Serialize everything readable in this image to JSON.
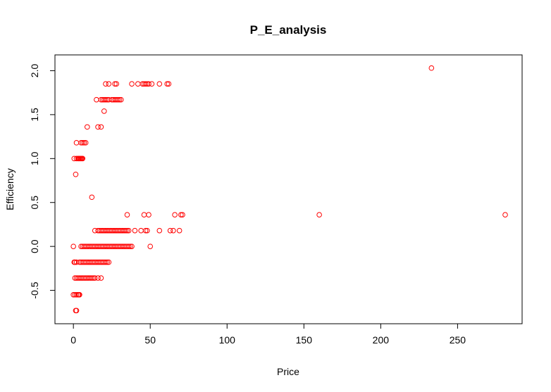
{
  "chart_data": {
    "type": "scatter",
    "title": "P_E_analysis",
    "xlabel": "Price",
    "ylabel": "Efficiency",
    "xlim": [
      -12,
      292
    ],
    "ylim": [
      -0.88,
      2.18
    ],
    "xticks": [
      0,
      50,
      100,
      150,
      200,
      250
    ],
    "yticks": [
      -0.5,
      0.0,
      0.5,
      1.0,
      1.5,
      2.0
    ],
    "xtick_labels": [
      "0",
      "50",
      "100",
      "150",
      "200",
      "250"
    ],
    "ytick_labels": [
      "-0.5",
      "0.0",
      "0.5",
      "1.0",
      "1.5",
      "2.0"
    ],
    "grid": false,
    "point_color": "#ff0000",
    "marker": "open-circle",
    "series": [
      {
        "points": [
          [
            21,
            1.85
          ],
          [
            23,
            1.85
          ],
          [
            27,
            1.85
          ],
          [
            28,
            1.85
          ],
          [
            38,
            1.85
          ],
          [
            42,
            1.85
          ],
          [
            45,
            1.85
          ],
          [
            46,
            1.85
          ],
          [
            47,
            1.85
          ],
          [
            48,
            1.85
          ],
          [
            49,
            1.85
          ],
          [
            51,
            1.85
          ],
          [
            56,
            1.85
          ],
          [
            61,
            1.85
          ],
          [
            62,
            1.85
          ],
          [
            233,
            2.03
          ],
          [
            15,
            1.67
          ],
          [
            18,
            1.67
          ],
          [
            19,
            1.67
          ],
          [
            20,
            1.67
          ],
          [
            21,
            1.67
          ],
          [
            22,
            1.67
          ],
          [
            23,
            1.67
          ],
          [
            25,
            1.67
          ],
          [
            26,
            1.67
          ],
          [
            27,
            1.67
          ],
          [
            28,
            1.67
          ],
          [
            29,
            1.67
          ],
          [
            30,
            1.67
          ],
          [
            31,
            1.67
          ],
          [
            20,
            1.54
          ],
          [
            9,
            1.36
          ],
          [
            16,
            1.36
          ],
          [
            18,
            1.36
          ],
          [
            2,
            1.18
          ],
          [
            5,
            1.18
          ],
          [
            6,
            1.18
          ],
          [
            7,
            1.18
          ],
          [
            8,
            1.18
          ],
          [
            0.5,
            1.0
          ],
          [
            2,
            1.0
          ],
          [
            3,
            1.0
          ],
          [
            3.5,
            1.0
          ],
          [
            4,
            1.0
          ],
          [
            4.5,
            1.0
          ],
          [
            5,
            1.0
          ],
          [
            5.5,
            1.0
          ],
          [
            6,
            1.0
          ],
          [
            1.5,
            0.82
          ],
          [
            12,
            0.56
          ],
          [
            35,
            0.36
          ],
          [
            46,
            0.36
          ],
          [
            49,
            0.36
          ],
          [
            66,
            0.36
          ],
          [
            70,
            0.36
          ],
          [
            71,
            0.36
          ],
          [
            160,
            0.36
          ],
          [
            281,
            0.36
          ],
          [
            14,
            0.18
          ],
          [
            16,
            0.18
          ],
          [
            17,
            0.18
          ],
          [
            18,
            0.18
          ],
          [
            19,
            0.18
          ],
          [
            20,
            0.18
          ],
          [
            21,
            0.18
          ],
          [
            22,
            0.18
          ],
          [
            23,
            0.18
          ],
          [
            24,
            0.18
          ],
          [
            25,
            0.18
          ],
          [
            26,
            0.18
          ],
          [
            27,
            0.18
          ],
          [
            28,
            0.18
          ],
          [
            29,
            0.18
          ],
          [
            30,
            0.18
          ],
          [
            31,
            0.18
          ],
          [
            32,
            0.18
          ],
          [
            33,
            0.18
          ],
          [
            34,
            0.18
          ],
          [
            35,
            0.18
          ],
          [
            36,
            0.18
          ],
          [
            40,
            0.18
          ],
          [
            44,
            0.18
          ],
          [
            47,
            0.18
          ],
          [
            48,
            0.18
          ],
          [
            56,
            0.18
          ],
          [
            63,
            0.18
          ],
          [
            65,
            0.18
          ],
          [
            69,
            0.18
          ],
          [
            0,
            0.0
          ],
          [
            5,
            0.0
          ],
          [
            6,
            0.0
          ],
          [
            7,
            0.0
          ],
          [
            8,
            0.0
          ],
          [
            9,
            0.0
          ],
          [
            10,
            0.0
          ],
          [
            11,
            0.0
          ],
          [
            12,
            0.0
          ],
          [
            13,
            0.0
          ],
          [
            14,
            0.0
          ],
          [
            15,
            0.0
          ],
          [
            16,
            0.0
          ],
          [
            17,
            0.0
          ],
          [
            18,
            0.0
          ],
          [
            19,
            0.0
          ],
          [
            20,
            0.0
          ],
          [
            21,
            0.0
          ],
          [
            22,
            0.0
          ],
          [
            23,
            0.0
          ],
          [
            24,
            0.0
          ],
          [
            25,
            0.0
          ],
          [
            26,
            0.0
          ],
          [
            27,
            0.0
          ],
          [
            28,
            0.0
          ],
          [
            29,
            0.0
          ],
          [
            30,
            0.0
          ],
          [
            31,
            0.0
          ],
          [
            32,
            0.0
          ],
          [
            33,
            0.0
          ],
          [
            34,
            0.0
          ],
          [
            35,
            0.0
          ],
          [
            36,
            0.0
          ],
          [
            37,
            0.0
          ],
          [
            38,
            0.0
          ],
          [
            50,
            0.0
          ],
          [
            0.5,
            -0.18
          ],
          [
            1,
            -0.18
          ],
          [
            2,
            -0.18
          ],
          [
            4,
            -0.18
          ],
          [
            5,
            -0.18
          ],
          [
            6,
            -0.18
          ],
          [
            7,
            -0.18
          ],
          [
            8,
            -0.18
          ],
          [
            9,
            -0.18
          ],
          [
            10,
            -0.18
          ],
          [
            11,
            -0.18
          ],
          [
            12,
            -0.18
          ],
          [
            13,
            -0.18
          ],
          [
            14,
            -0.18
          ],
          [
            15,
            -0.18
          ],
          [
            16,
            -0.18
          ],
          [
            17,
            -0.18
          ],
          [
            18,
            -0.18
          ],
          [
            19,
            -0.18
          ],
          [
            20,
            -0.18
          ],
          [
            21,
            -0.18
          ],
          [
            22,
            -0.18
          ],
          [
            23,
            -0.18
          ],
          [
            1,
            -0.36
          ],
          [
            2,
            -0.36
          ],
          [
            3,
            -0.36
          ],
          [
            4,
            -0.36
          ],
          [
            5,
            -0.36
          ],
          [
            6,
            -0.36
          ],
          [
            7,
            -0.36
          ],
          [
            8,
            -0.36
          ],
          [
            9,
            -0.36
          ],
          [
            10,
            -0.36
          ],
          [
            11,
            -0.36
          ],
          [
            12,
            -0.36
          ],
          [
            13,
            -0.36
          ],
          [
            14,
            -0.36
          ],
          [
            16,
            -0.36
          ],
          [
            18,
            -0.36
          ],
          [
            0,
            -0.55
          ],
          [
            1,
            -0.55
          ],
          [
            2,
            -0.55
          ],
          [
            3,
            -0.55
          ],
          [
            3.5,
            -0.55
          ],
          [
            4,
            -0.55
          ],
          [
            1.5,
            -0.73
          ],
          [
            2,
            -0.73
          ]
        ]
      }
    ]
  }
}
